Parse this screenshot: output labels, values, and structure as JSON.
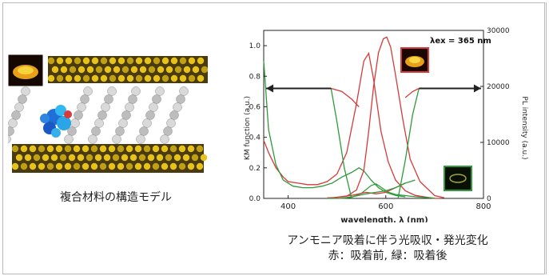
{
  "figure": {
    "left_caption": "複合材料の構造モデル",
    "right_caption_line1": "アンモニア吸着に伴う光吸収・発光変化",
    "right_caption_line2": "赤：吸着前, 緑：吸着後"
  },
  "chart_data": {
    "type": "line",
    "xlabel": "wavelength, λ (nm)",
    "ylabel_left": "KM function (a.u.)",
    "ylabel_right": "PL intensity (a.u.)",
    "annotation": "λex = 365 nm",
    "xlim": [
      350,
      800
    ],
    "ylim_left": [
      0,
      1.1
    ],
    "ylim_right": [
      0,
      30000
    ],
    "x_ticks": [
      400,
      600,
      800
    ],
    "y_ticks_left": [
      "0.0",
      "0.2",
      "0.4",
      "0.6",
      "0.8",
      "1.0"
    ],
    "y_ticks_right": [
      "0",
      "10000",
      "20000",
      "30000"
    ],
    "colors": {
      "before": "#d63a3a",
      "after": "#2e9a3a",
      "arrow": "#222222"
    },
    "series": [
      {
        "axis": "left",
        "color": "before",
        "x": [
          350,
          360,
          375,
          390,
          400,
          420,
          440,
          460,
          480,
          500,
          520,
          540,
          555,
          565,
          575,
          590,
          605,
          620,
          640,
          660,
          680,
          700,
          710
        ],
        "y": [
          0.38,
          0.3,
          0.2,
          0.14,
          0.11,
          0.1,
          0.09,
          0.09,
          0.11,
          0.16,
          0.3,
          0.62,
          0.9,
          0.95,
          0.78,
          0.44,
          0.24,
          0.12,
          0.05,
          0.02,
          0.01,
          0.0,
          0.0
        ]
      },
      {
        "axis": "left",
        "color": "after",
        "x": [
          350,
          360,
          375,
          390,
          410,
          430,
          450,
          470,
          490,
          510,
          530,
          545,
          555,
          570,
          585,
          600,
          620,
          640
        ],
        "y": [
          0.9,
          0.45,
          0.22,
          0.12,
          0.08,
          0.07,
          0.07,
          0.08,
          0.1,
          0.14,
          0.17,
          0.2,
          0.18,
          0.12,
          0.07,
          0.04,
          0.02,
          0.01
        ]
      },
      {
        "axis": "right",
        "color": "before",
        "x": [
          480,
          500,
          520,
          540,
          555,
          565,
          575,
          585,
          595,
          602,
          610,
          620,
          635,
          650,
          670,
          700,
          720
        ],
        "y": [
          100,
          150,
          400,
          1500,
          5000,
          12000,
          20000,
          26000,
          28500,
          28800,
          27000,
          22000,
          14000,
          7000,
          3000,
          500,
          100
        ]
      },
      {
        "axis": "right",
        "color": "after",
        "x": [
          510,
          530,
          550,
          570,
          580,
          590,
          605,
          620,
          640,
          660,
          680,
          700
        ],
        "y": [
          0,
          200,
          900,
          2300,
          2600,
          2000,
          1100,
          700,
          500,
          300,
          150,
          50
        ]
      },
      {
        "axis": "left",
        "color": "before",
        "x": [
          480,
          505,
          530,
          560,
          580,
          600,
          620,
          640
        ],
        "y": [
          0.0,
          0.01,
          0.02,
          0.04,
          0.03,
          0.04,
          0.07,
          0.1
        ]
      },
      {
        "axis": "left",
        "color": "after",
        "x": [
          480,
          505,
          530,
          560,
          580,
          600,
          620,
          640,
          660
        ],
        "y": [
          0.0,
          0.0,
          0.01,
          0.03,
          0.04,
          0.05,
          0.07,
          0.1,
          0.12
        ]
      },
      {
        "axis": "left",
        "color": "after",
        "x": [
          488,
          500,
          515,
          530
        ],
        "y": [
          0.72,
          0.5,
          0.2,
          0.0
        ]
      },
      {
        "axis": "left",
        "color": "after",
        "x": [
          625,
          640,
          655,
          668
        ],
        "y": [
          0.0,
          0.25,
          0.55,
          0.72
        ]
      },
      {
        "axis": "left",
        "color": "before",
        "x": [
          488,
          510,
          530,
          545
        ],
        "y": [
          0.72,
          0.7,
          0.65,
          0.6
        ]
      },
      {
        "axis": "left",
        "color": "before",
        "x": [
          640,
          655,
          668
        ],
        "y": [
          0.66,
          0.7,
          0.72
        ]
      }
    ],
    "arrows": [
      {
        "from": 355,
        "to": 488,
        "y": 0.72
      },
      {
        "from": 668,
        "to": 795,
        "y": 0.72
      }
    ]
  }
}
